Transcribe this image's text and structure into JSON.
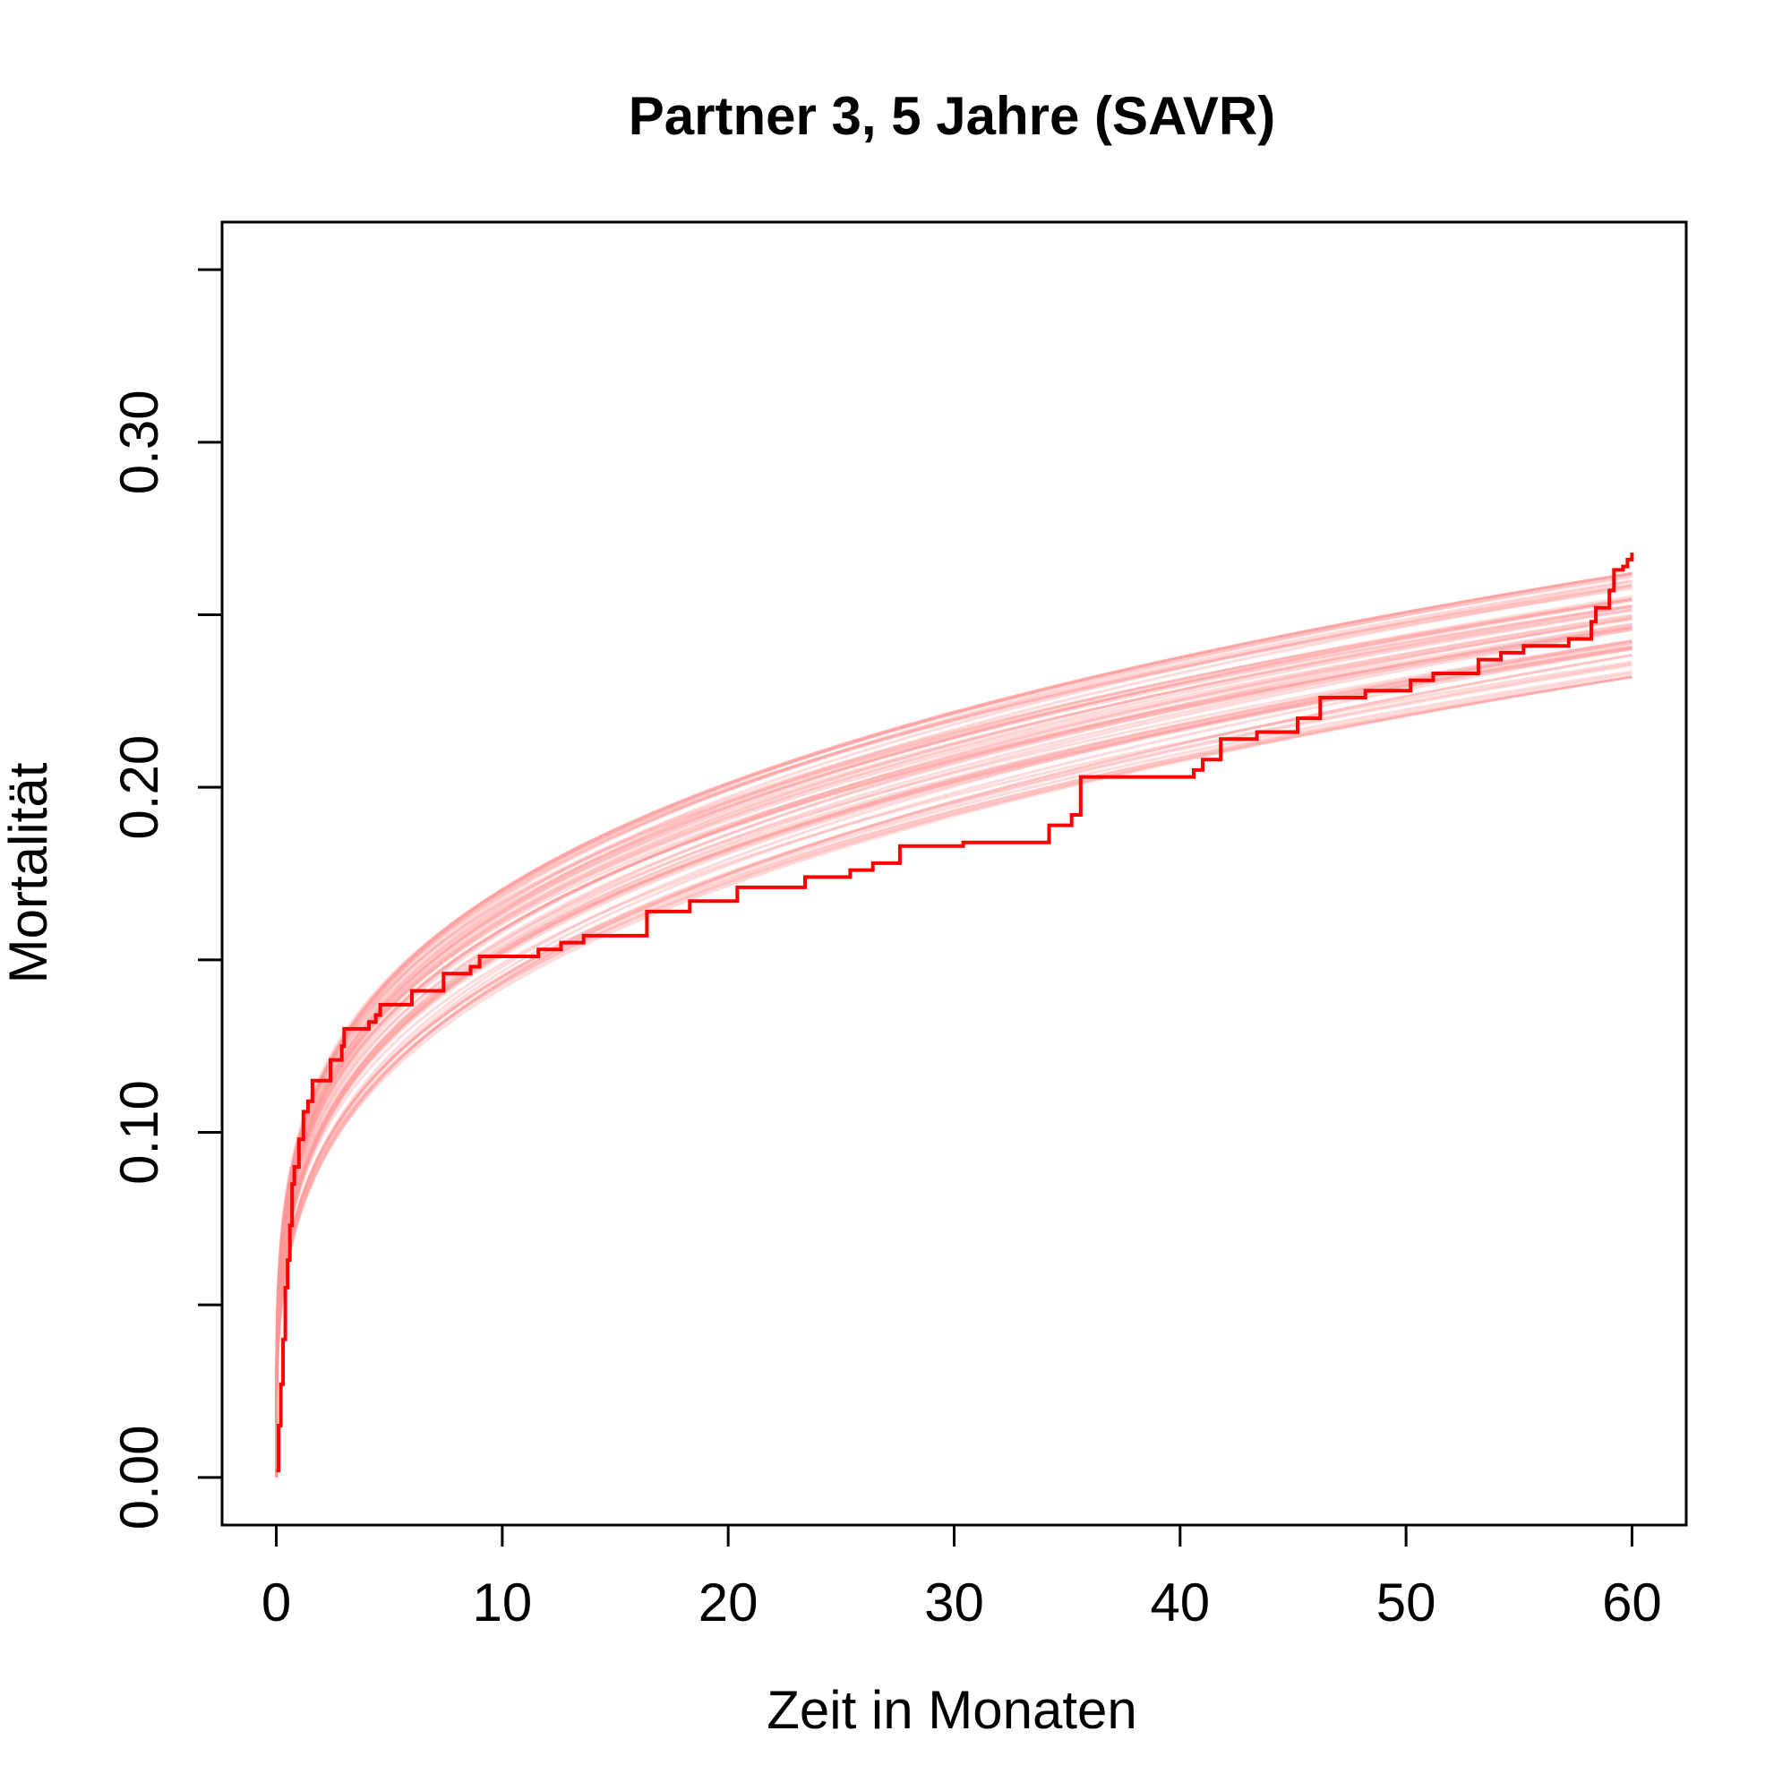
{
  "chart_data": {
    "type": "line",
    "title": "Partner 3, 5 Jahre (SAVR)",
    "xlabel": "Zeit in Monaten",
    "ylabel": "Mortalität",
    "xlim": [
      -2.4,
      62.4
    ],
    "ylim": [
      -0.0138,
      0.3638
    ],
    "x_ticks": [
      0,
      10,
      20,
      30,
      40,
      50,
      60
    ],
    "x_tick_labels": [
      "0",
      "10",
      "20",
      "30",
      "40",
      "50",
      "60"
    ],
    "y_ticks": [
      0.0,
      0.05,
      0.1,
      0.15,
      0.2,
      0.25,
      0.3,
      0.35
    ],
    "y_tick_labels": [
      "0.00",
      "",
      "0.10",
      "",
      "0.20",
      "",
      "0.30",
      ""
    ],
    "grid": false,
    "legend": "none",
    "colors": {
      "observed": "#ff0000",
      "simulated": "#ff9999"
    },
    "series": [
      {
        "role": "observed",
        "step": true,
        "x": [
          0,
          0.1,
          0.2,
          0.3,
          0.4,
          0.5,
          0.6,
          0.7,
          0.8,
          1.0,
          1.2,
          1.4,
          1.6,
          2.4,
          2.9,
          3.0,
          4.1,
          4.4,
          4.6,
          6.0,
          7.4,
          8.6,
          9.0,
          11.6,
          12.6,
          13.6,
          16.4,
          18.3,
          20.4,
          23.4,
          25.4,
          26.4,
          27.6,
          30.4,
          34.2,
          35.2,
          35.6,
          40.6,
          41.0,
          41.8,
          43.4,
          45.2,
          46.2,
          48.2,
          50.2,
          51.2,
          53.2,
          54.2,
          55.2,
          57.2,
          58.2,
          58.4,
          59.0,
          59.2,
          59.6,
          59.8,
          60.0
        ],
        "y": [
          0.002,
          0.015,
          0.027,
          0.04,
          0.055,
          0.063,
          0.073,
          0.085,
          0.09,
          0.098,
          0.106,
          0.109,
          0.115,
          0.121,
          0.125,
          0.13,
          0.132,
          0.134,
          0.137,
          0.141,
          0.146,
          0.148,
          0.151,
          0.153,
          0.155,
          0.157,
          0.164,
          0.167,
          0.171,
          0.174,
          0.176,
          0.178,
          0.183,
          0.184,
          0.189,
          0.192,
          0.203,
          0.205,
          0.208,
          0.214,
          0.216,
          0.22,
          0.226,
          0.228,
          0.231,
          0.233,
          0.237,
          0.239,
          0.241,
          0.243,
          0.248,
          0.252,
          0.257,
          0.263,
          0.264,
          0.266,
          0.268
        ]
      }
    ],
    "simulated_band": {
      "description": "many light red simulated curves",
      "count": 60,
      "x_max": 60,
      "y_at_1": [
        0.075,
        0.1
      ],
      "y_at_60": [
        0.232,
        0.262
      ]
    }
  }
}
